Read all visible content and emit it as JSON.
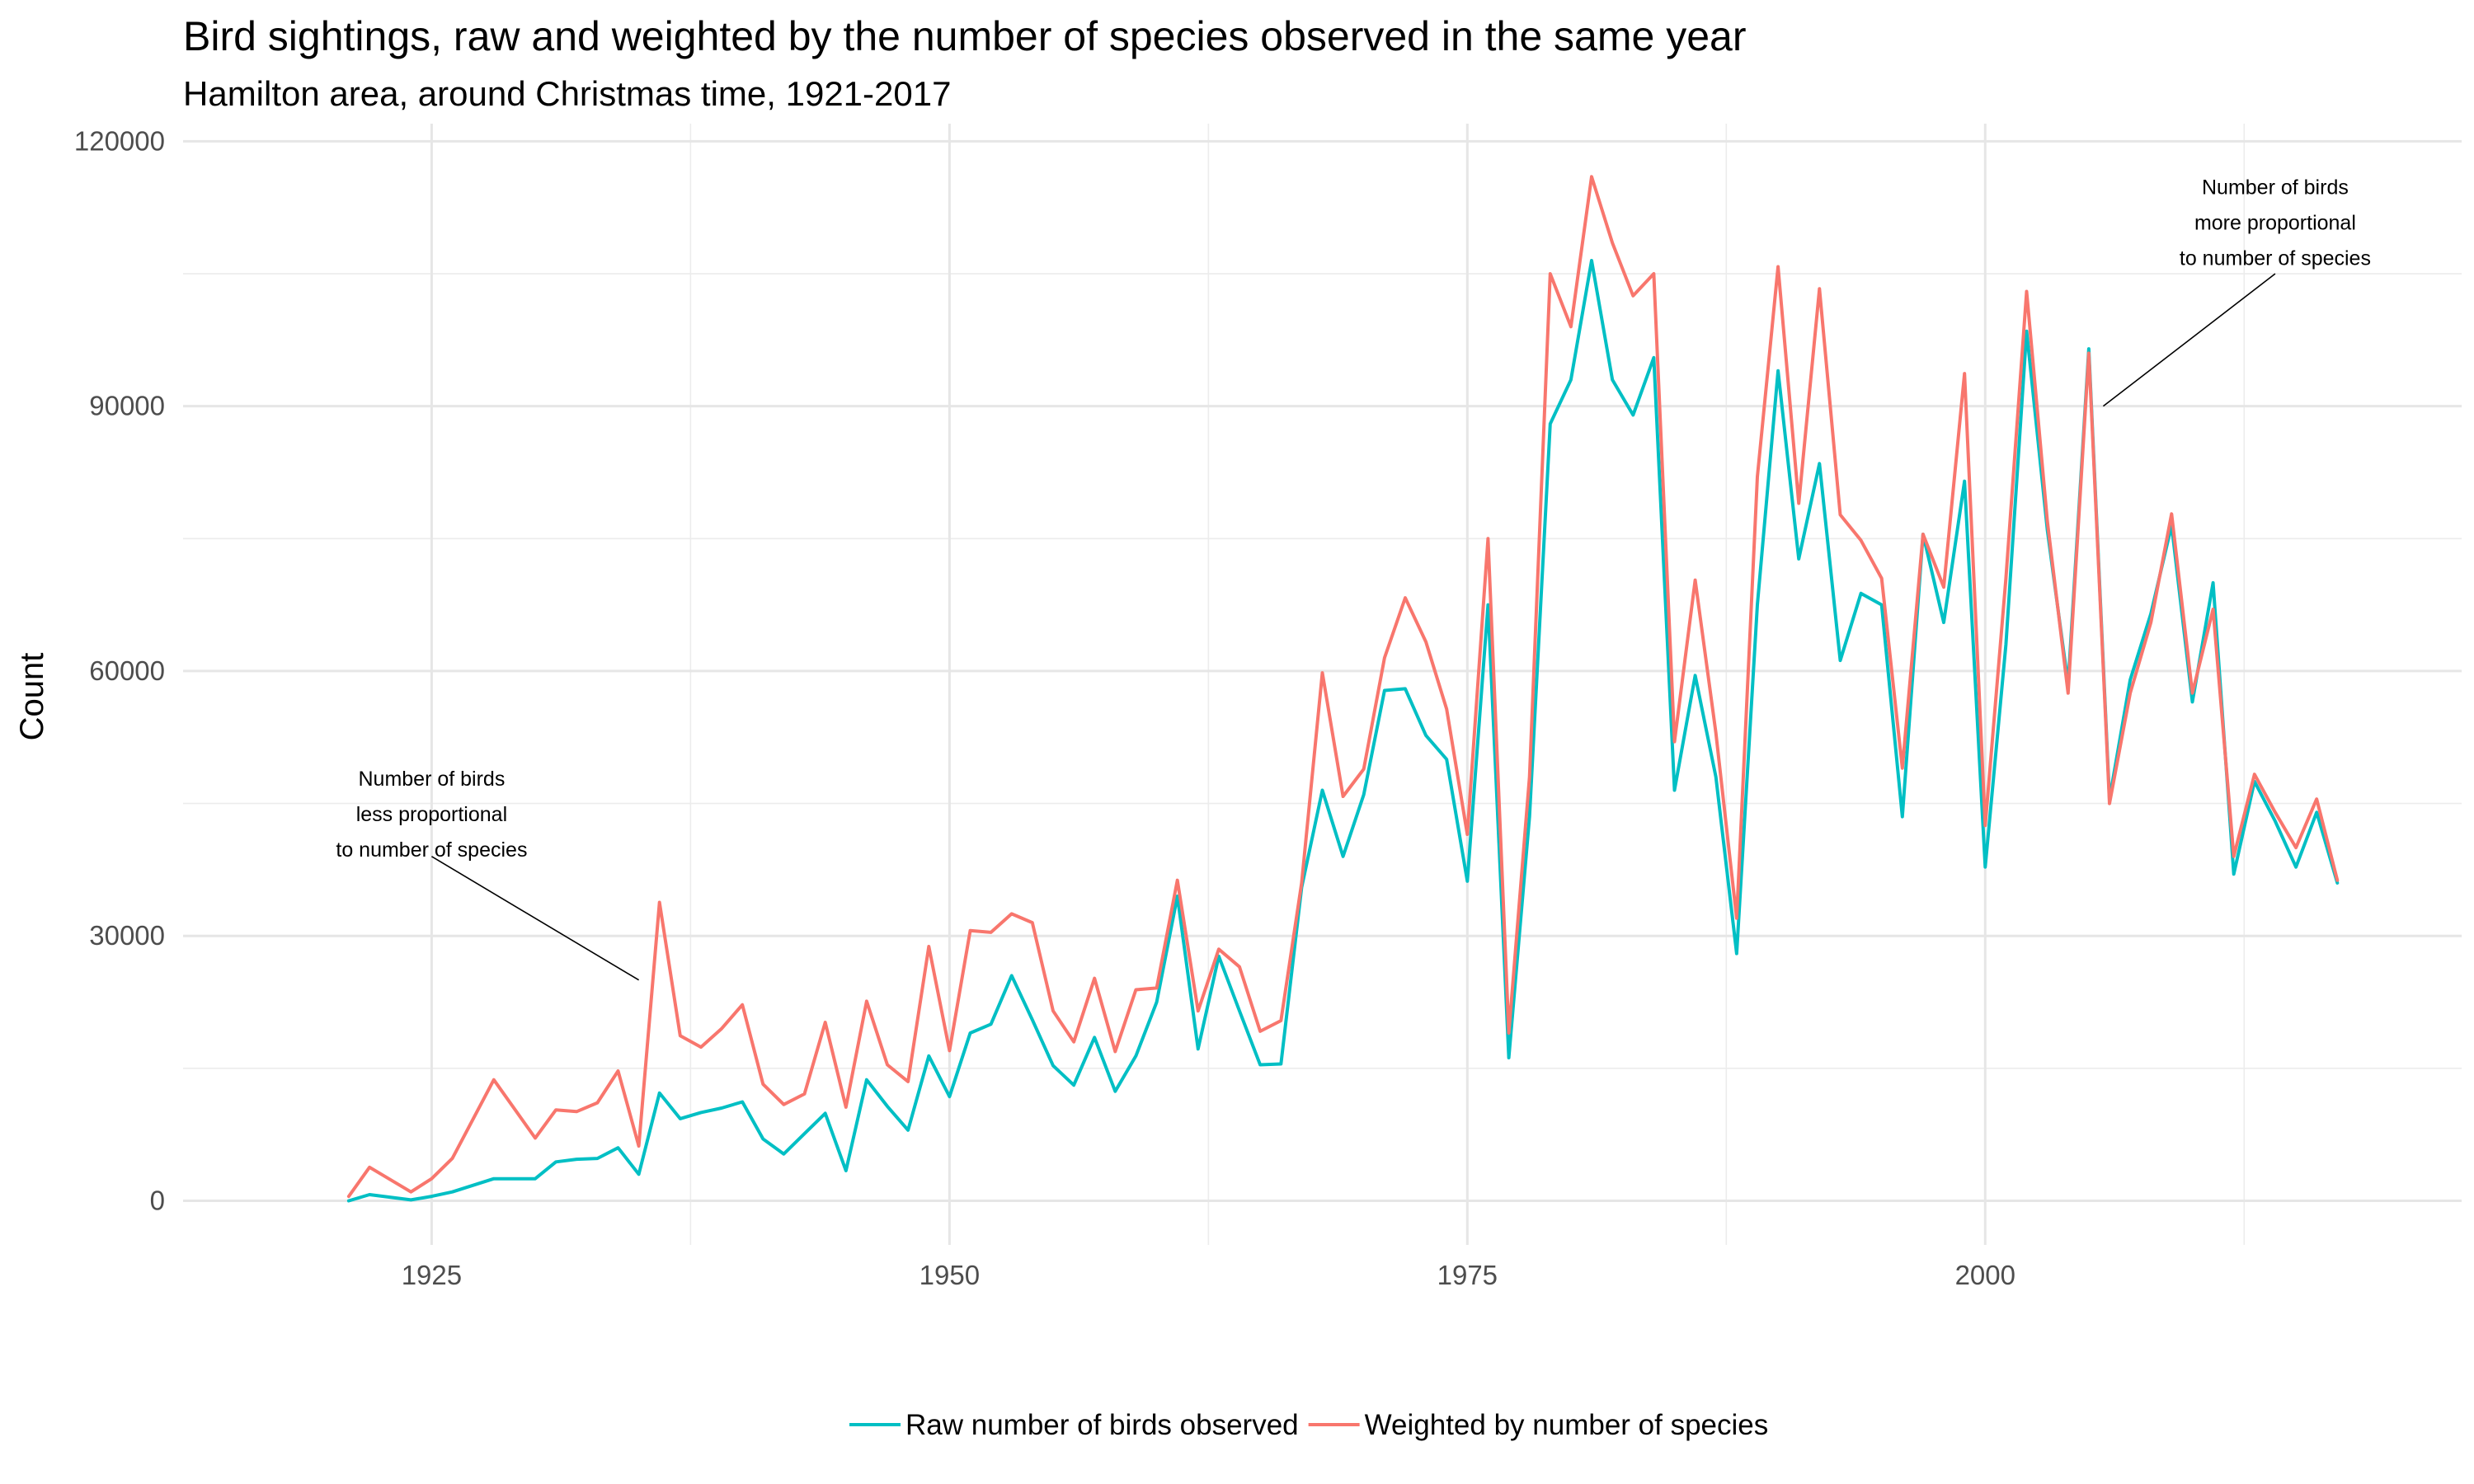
{
  "chart_data": {
    "type": "line",
    "title": "Bird sightings, raw and weighted by the number of species observed in the same year",
    "subtitle": "Hamilton area, around Christmas time, 1921-2017",
    "ylabel": "Count",
    "xlabel": "",
    "xlim": [
      1913,
      2023
    ],
    "ylim": [
      -5000,
      122000
    ],
    "x_ticks": [
      1925,
      1950,
      1975,
      2000
    ],
    "y_ticks": [
      0,
      30000,
      60000,
      90000,
      120000
    ],
    "x_minor": [
      1937.5,
      1962.5,
      1987.5,
      2012.5
    ],
    "y_minor": [
      15000,
      45000,
      75000,
      105000
    ],
    "grid": true,
    "legend_position": "bottom",
    "x": [
      1921,
      1922,
      1924,
      1925,
      1926,
      1928,
      1930,
      1931,
      1932,
      1933,
      1934,
      1935,
      1936,
      1937,
      1938,
      1939,
      1940,
      1941,
      1942,
      1943,
      1944,
      1945,
      1946,
      1947,
      1948,
      1949,
      1950,
      1951,
      1952,
      1953,
      1954,
      1955,
      1956,
      1957,
      1958,
      1959,
      1960,
      1961,
      1962,
      1963,
      1964,
      1965,
      1966,
      1967,
      1968,
      1969,
      1970,
      1971,
      1972,
      1973,
      1974,
      1975,
      1976,
      1977,
      1978,
      1979,
      1980,
      1981,
      1982,
      1983,
      1984,
      1985,
      1986,
      1987,
      1988,
      1989,
      1990,
      1991,
      1992,
      1993,
      1994,
      1995,
      1996,
      1997,
      1998,
      1999,
      2000,
      2001,
      2002,
      2003,
      2004,
      2005,
      2006,
      2007,
      2008,
      2009,
      2010,
      2011,
      2012,
      2013,
      2014,
      2015,
      2016,
      2017
    ],
    "series": [
      {
        "name": "Raw number of birds observed",
        "color": "#00BFC4",
        "values": [
          0,
          700,
          100,
          500,
          1000,
          2500,
          2500,
          4400,
          4700,
          4800,
          6000,
          3000,
          12200,
          9300,
          10000,
          10500,
          11200,
          7000,
          5300,
          7600,
          9900,
          3400,
          13700,
          10700,
          8000,
          16400,
          11800,
          19000,
          20000,
          25500,
          20500,
          15300,
          13100,
          18500,
          12400,
          16400,
          22500,
          34500,
          17200,
          27700,
          21500,
          15400,
          15500,
          35500,
          46500,
          39000,
          46000,
          57800,
          58000,
          52700,
          50000,
          36200,
          67500,
          16200,
          43500,
          88000,
          93000,
          106500,
          93000,
          89000,
          95500,
          46500,
          59500,
          48000,
          28000,
          67500,
          94000,
          72700,
          83500,
          61200,
          68800,
          67500,
          43500,
          75500,
          65500,
          81500,
          37800,
          63000,
          98500,
          76000,
          58500,
          96500,
          45500,
          59000,
          66500,
          76500,
          56500,
          70000,
          37000,
          47500,
          43000,
          37800,
          44000,
          36000
        ]
      },
      {
        "name": "Weighted by number of species",
        "color": "#F8766D",
        "values": [
          500,
          3800,
          1000,
          2500,
          4800,
          13700,
          7100,
          10300,
          10100,
          11100,
          14700,
          6200,
          33800,
          18700,
          17400,
          19500,
          22200,
          13200,
          10900,
          12100,
          20200,
          10600,
          22600,
          15400,
          13500,
          28800,
          17000,
          30600,
          30400,
          32500,
          31500,
          21500,
          18000,
          25200,
          16900,
          23900,
          24100,
          36300,
          21500,
          28500,
          26500,
          19200,
          20400,
          36000,
          59800,
          45800,
          48900,
          61500,
          68300,
          63300,
          55700,
          41500,
          75000,
          19000,
          48000,
          105000,
          99000,
          116000,
          108500,
          102500,
          105000,
          52000,
          70300,
          53000,
          32000,
          82000,
          105800,
          79000,
          103300,
          77700,
          74800,
          70500,
          49000,
          75500,
          69500,
          93700,
          42500,
          70500,
          103000,
          77000,
          57500,
          96000,
          45000,
          57500,
          65500,
          77800,
          57500,
          67000,
          39000,
          48300,
          44000,
          40000,
          45500,
          36300
        ]
      }
    ],
    "annotations": [
      {
        "lines": [
          "Number of birds",
          "less proportional",
          "to number of species"
        ],
        "x": 1925,
        "y": 47000,
        "arrow_to": [
          1935,
          25000
        ],
        "arrow_from": [
          1925,
          39000
        ]
      },
      {
        "lines": [
          "Number of birds",
          "more proportional",
          "to number of species"
        ],
        "x": 2014,
        "y": 114000,
        "arrow_to": [
          2005.7,
          90000
        ],
        "arrow_from": [
          2014,
          105000
        ]
      }
    ]
  }
}
